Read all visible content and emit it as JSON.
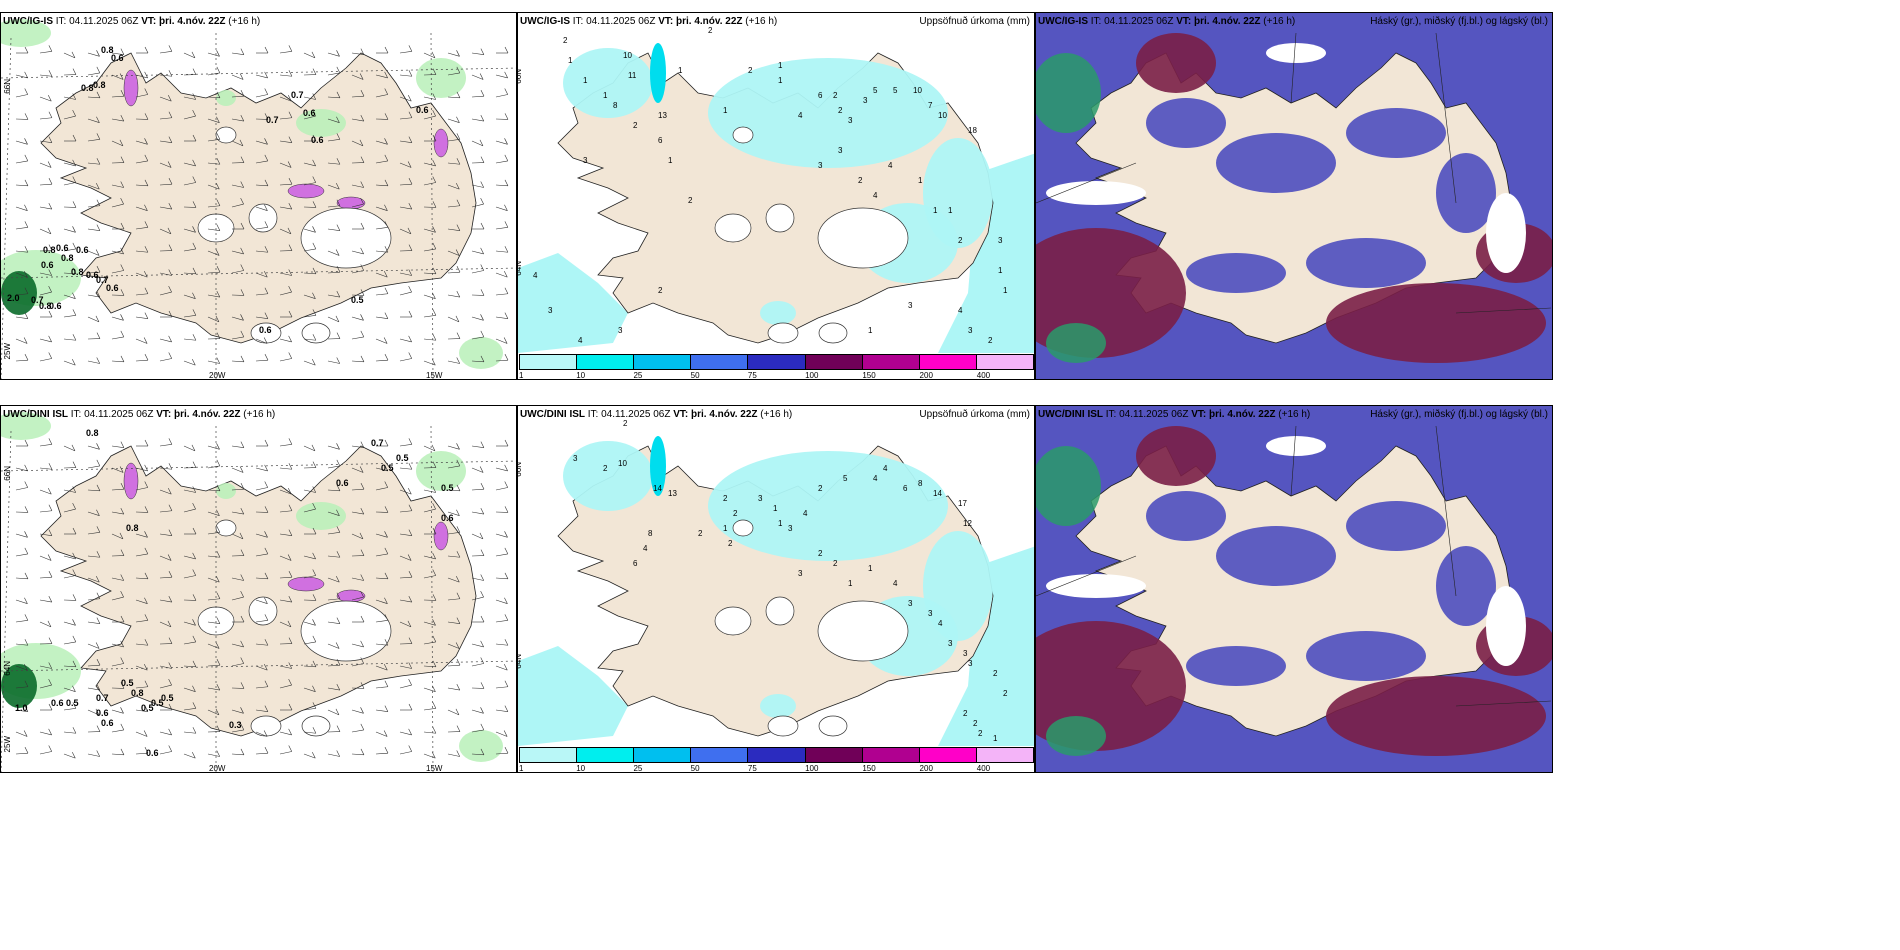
{
  "panels": {
    "r1c1": {
      "model": "UWC/IG-IS",
      "init": "IT: 04.11.2025 06Z",
      "vt_label": "VT:",
      "vt": "þri. 4.nóv. 22Z",
      "lead": "(+16 h)",
      "right": ""
    },
    "r1c2": {
      "model": "UWC/IG-IS",
      "init": "IT: 04.11.2025 06Z",
      "vt_label": "VT:",
      "vt": "þri. 4.nóv. 22Z",
      "lead": "(+16 h)",
      "right": "Uppsöfnuð úrkoma (mm)"
    },
    "r1c3": {
      "model": "UWC/IG-IS",
      "init": "IT: 04.11.2025 06Z",
      "vt_label": "VT:",
      "vt": "þri. 4.nóv. 22Z",
      "lead": "(+16 h)",
      "right": "Háský (gr.), miðský (fj.bl.) og lágský (bl.)"
    },
    "r2c1": {
      "model": "UWC/DINI ISL",
      "init": "IT: 04.11.2025 06Z",
      "vt_label": "VT:",
      "vt": "þri. 4.nóv. 22Z",
      "lead": "(+16 h)",
      "right": ""
    },
    "r2c2": {
      "model": "UWC/DINI ISL",
      "init": "IT: 04.11.2025 06Z",
      "vt_label": "VT:",
      "vt": "þri. 4.nóv. 22Z",
      "lead": "(+16 h)",
      "right": "Uppsöfnuð úrkoma (mm)"
    },
    "r2c3": {
      "model": "UWC/DINI ISL",
      "init": "IT: 04.11.2025 06Z",
      "vt_label": "VT:",
      "vt": "þri. 4.nóv. 22Z",
      "lead": "(+16 h)",
      "right": "Háský (gr.), miðský (fj.bl.) og lágský (bl.)"
    }
  },
  "axes": {
    "lat66": "66N",
    "lat64": "64N",
    "lon25": "25W",
    "lon20": "20W",
    "lon15": "15W"
  },
  "legend": {
    "ticks": [
      "1",
      "10",
      "25",
      "50",
      "75",
      "100",
      "150",
      "200",
      "400"
    ],
    "colors": [
      "#b9f7f7",
      "#00eeee",
      "#00bfef",
      "#3f6fef",
      "#2b2bbf",
      "#700058",
      "#b00090",
      "#ff00c8",
      "#f4b4f8"
    ]
  },
  "colors": {
    "land": "#f2e6d6",
    "precip": "#aef6f6",
    "cloud_mid": "#5555c0",
    "cloud_high": "#7a1f47",
    "wind_precip": "#b8f0b8",
    "snow": "#d070e0"
  },
  "labels": {
    "r1c1": [
      "0.8",
      "0.6",
      "0.8",
      "0.8",
      "0.7",
      "0.6",
      "0.6",
      "0.7",
      "0.6",
      "0.8",
      "0.6",
      "0.8",
      "0.8",
      "0.6",
      "0.6",
      "0.6",
      "0.7",
      "0.6",
      "0.7",
      "0.8",
      "0.6",
      "2.0",
      "0.5",
      "0.6"
    ],
    "r1c2": [
      "2",
      "2",
      "1",
      "1",
      "1",
      "10",
      "11",
      "8",
      "2",
      "13",
      "6",
      "1",
      "1",
      "1",
      "2",
      "1",
      "1",
      "4",
      "6",
      "2",
      "2",
      "3",
      "3",
      "5",
      "5",
      "10",
      "7",
      "10",
      "18",
      "3",
      "3",
      "2",
      "4",
      "4",
      "1",
      "1",
      "1",
      "2",
      "3",
      "2",
      "2",
      "3",
      "4",
      "3",
      "4",
      "3",
      "1",
      "1",
      "4",
      "3",
      "2",
      "3",
      "1"
    ],
    "r2c1": [
      "0.8",
      "0.7",
      "0.5",
      "0.5",
      "0.6",
      "0.5",
      "0.6",
      "0.8",
      "0.5",
      "0.8",
      "0.7",
      "0.6",
      "0.5",
      "0.5",
      "0.5",
      "0.3",
      "1.0",
      "0.6",
      "0.5",
      "0.6",
      "0.6"
    ],
    "r2c2": [
      "2",
      "3",
      "2",
      "10",
      "14",
      "13",
      "2",
      "1",
      "2",
      "8",
      "4",
      "6",
      "2",
      "2",
      "3",
      "1",
      "1",
      "3",
      "4",
      "2",
      "5",
      "4",
      "4",
      "6",
      "8",
      "14",
      "17",
      "12",
      "3",
      "2",
      "2",
      "1",
      "1",
      "4",
      "3",
      "3",
      "4",
      "3",
      "3",
      "3",
      "2",
      "2",
      "2",
      "2",
      "2",
      "1"
    ]
  }
}
